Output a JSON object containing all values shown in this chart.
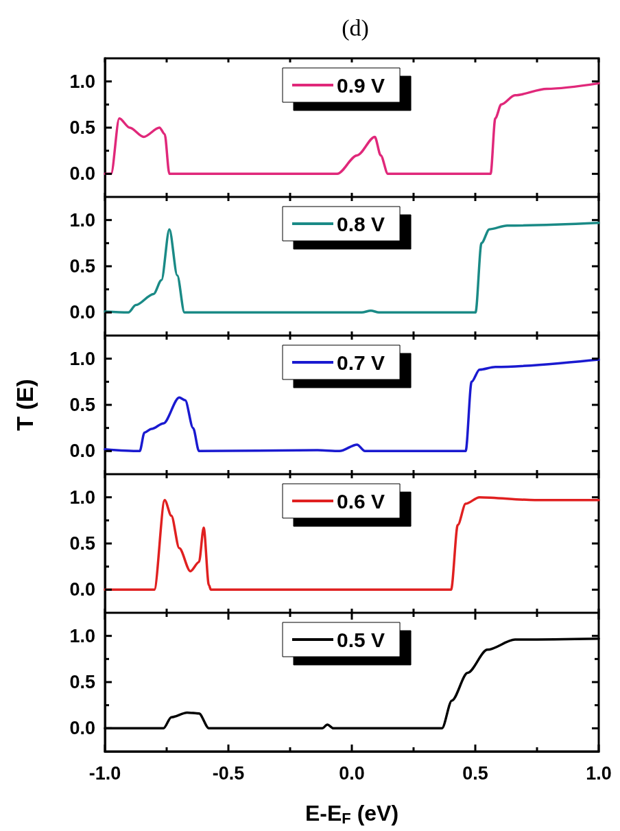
{
  "chart_data": [
    {
      "type": "line",
      "title": "(d)",
      "legend": "top",
      "tick_labels": "y",
      "xlim": [
        -1,
        1
      ],
      "ylim": [
        -0.25,
        1.25
      ],
      "xticks": [
        {
          "value": -1,
          "label": null
        },
        {
          "value": -0.75,
          "label": null
        },
        {
          "value": -0.5,
          "label": null
        },
        {
          "value": -0.25,
          "label": null
        },
        {
          "value": 0,
          "label": null
        },
        {
          "value": 0.25,
          "label": null
        },
        {
          "value": 0.5,
          "label": null
        },
        {
          "value": 0.75,
          "label": null
        },
        {
          "value": 1,
          "label": null
        }
      ],
      "yticks": [
        {
          "value": 0,
          "label": "0.0"
        },
        {
          "value": 0.25,
          "label": null
        },
        {
          "value": 0.5,
          "label": "0.5"
        },
        {
          "value": 0.75,
          "label": null
        },
        {
          "value": 1,
          "label": "1.0"
        }
      ],
      "series": [
        {
          "name": "0.9 V",
          "color": "#e0287a",
          "x": [
            -1,
            -0.975,
            -0.942,
            -0.9,
            -0.843,
            -0.779,
            -0.758,
            -0.739,
            -0.059,
            0.021,
            0.093,
            0.117,
            0.146,
            0.562,
            0.581,
            0.605,
            0.661,
            0.789,
            1
          ],
          "values": [
            0,
            0,
            0.6,
            0.5,
            0.4,
            0.5,
            0.43,
            0,
            0,
            0.2,
            0.4,
            0.2,
            0,
            0,
            0.6,
            0.75,
            0.85,
            0.92,
            0.98
          ]
        }
      ]
    },
    {
      "type": "line",
      "legend": "top",
      "tick_labels": "y",
      "xlim": [
        -1,
        1
      ],
      "ylim": [
        -0.25,
        1.25
      ],
      "xticks": [
        {
          "value": -1,
          "label": null
        },
        {
          "value": -0.75,
          "label": null
        },
        {
          "value": -0.5,
          "label": null
        },
        {
          "value": -0.25,
          "label": null
        },
        {
          "value": 0,
          "label": null
        },
        {
          "value": 0.25,
          "label": null
        },
        {
          "value": 0.5,
          "label": null
        },
        {
          "value": 0.75,
          "label": null
        },
        {
          "value": 1,
          "label": null
        }
      ],
      "yticks": [
        {
          "value": 0,
          "label": "0.0"
        },
        {
          "value": 0.25,
          "label": null
        },
        {
          "value": 0.5,
          "label": "0.5"
        },
        {
          "value": 0.75,
          "label": null
        },
        {
          "value": 1,
          "label": "1.0"
        }
      ],
      "series": [
        {
          "name": "0.8 V",
          "color": "#1a8a86",
          "x": [
            -1,
            -0.905,
            -0.875,
            -0.803,
            -0.771,
            -0.739,
            -0.707,
            -0.678,
            0.04,
            0.077,
            0.11,
            0.501,
            0.525,
            0.557,
            0.629,
            1
          ],
          "values": [
            0.01,
            0,
            0.08,
            0.2,
            0.35,
            0.9,
            0.4,
            0,
            0,
            0.02,
            0,
            0,
            0.75,
            0.9,
            0.94,
            0.97
          ]
        }
      ]
    },
    {
      "type": "line",
      "ylabel": "T (E)",
      "legend": "top",
      "tick_labels": "y",
      "xlim": [
        -1,
        1
      ],
      "ylim": [
        -0.25,
        1.25
      ],
      "xticks": [
        {
          "value": -1,
          "label": null
        },
        {
          "value": -0.75,
          "label": null
        },
        {
          "value": -0.5,
          "label": null
        },
        {
          "value": -0.25,
          "label": null
        },
        {
          "value": 0,
          "label": null
        },
        {
          "value": 0.25,
          "label": null
        },
        {
          "value": 0.5,
          "label": null
        },
        {
          "value": 0.75,
          "label": null
        },
        {
          "value": 1,
          "label": null
        }
      ],
      "yticks": [
        {
          "value": 0,
          "label": "0.0"
        },
        {
          "value": 0.25,
          "label": null
        },
        {
          "value": 0.5,
          "label": "0.5"
        },
        {
          "value": 0.75,
          "label": null
        },
        {
          "value": 1,
          "label": "1.0"
        }
      ],
      "series": [
        {
          "name": "0.7 V",
          "color": "#1a1ad0",
          "x": [
            -1,
            -0.859,
            -0.84,
            -0.811,
            -0.763,
            -0.699,
            -0.675,
            -0.643,
            -0.619,
            -0.139,
            -0.05,
            0.021,
            0.053,
            0.461,
            0.485,
            0.517,
            0.581,
            1
          ],
          "values": [
            0.02,
            0,
            0.2,
            0.24,
            0.3,
            0.58,
            0.55,
            0.25,
            0,
            0.01,
            0,
            0.07,
            0,
            0,
            0.75,
            0.88,
            0.91,
            0.99
          ]
        }
      ]
    },
    {
      "type": "line",
      "legend": "top",
      "tick_labels": "y",
      "xlim": [
        -1,
        1
      ],
      "ylim": [
        -0.25,
        1.25
      ],
      "xticks": [
        {
          "value": -1,
          "label": null
        },
        {
          "value": -0.75,
          "label": null
        },
        {
          "value": -0.5,
          "label": null
        },
        {
          "value": -0.25,
          "label": null
        },
        {
          "value": 0,
          "label": null
        },
        {
          "value": 0.25,
          "label": null
        },
        {
          "value": 0.5,
          "label": null
        },
        {
          "value": 0.75,
          "label": null
        },
        {
          "value": 1,
          "label": null
        }
      ],
      "yticks": [
        {
          "value": 0,
          "label": "0.0"
        },
        {
          "value": 0.25,
          "label": null
        },
        {
          "value": 0.5,
          "label": "0.5"
        },
        {
          "value": 0.75,
          "label": null
        },
        {
          "value": 1,
          "label": "1.0"
        }
      ],
      "series": [
        {
          "name": "0.6 V",
          "color": "#e02020",
          "x": [
            -1,
            -0.8,
            -0.758,
            -0.731,
            -0.699,
            -0.654,
            -0.619,
            -0.6,
            -0.579,
            -0.571,
            0.402,
            0.429,
            0.461,
            0.517,
            0.741,
            1
          ],
          "values": [
            0,
            0,
            0.97,
            0.8,
            0.45,
            0.2,
            0.3,
            0.67,
            0.05,
            0,
            0,
            0.7,
            0.93,
            1,
            0.97,
            0.97
          ]
        }
      ]
    },
    {
      "type": "line",
      "xlabel": "E-E$_{F}$ (eV)",
      "legend": "top",
      "xlim": [
        -1,
        1
      ],
      "ylim": [
        -0.25,
        1.25
      ],
      "xticks": [
        {
          "value": -1,
          "label": "-1.0"
        },
        {
          "value": -0.75,
          "label": null
        },
        {
          "value": -0.5,
          "label": "-0.5"
        },
        {
          "value": -0.25,
          "label": null
        },
        {
          "value": 0,
          "label": "0.0"
        },
        {
          "value": 0.25,
          "label": null
        },
        {
          "value": 0.5,
          "label": "0.5"
        },
        {
          "value": 0.75,
          "label": null
        },
        {
          "value": 1,
          "label": "1.0"
        }
      ],
      "yticks": [
        {
          "value": 0,
          "label": "0.0"
        },
        {
          "value": 0.25,
          "label": null
        },
        {
          "value": 0.5,
          "label": "0.5"
        },
        {
          "value": 0.75,
          "label": null
        },
        {
          "value": 1,
          "label": "1.0"
        }
      ],
      "series": [
        {
          "name": "0.5 V",
          "color": "#000000",
          "x": [
            -1,
            -0.763,
            -0.731,
            -0.667,
            -0.619,
            -0.579,
            -0.12,
            -0.099,
            -0.075,
            0.365,
            0.405,
            0.469,
            0.549,
            0.661,
            1
          ],
          "values": [
            0,
            0,
            0.12,
            0.17,
            0.16,
            0,
            0,
            0.04,
            0,
            0,
            0.3,
            0.6,
            0.85,
            0.96,
            0.97
          ]
        }
      ]
    }
  ]
}
